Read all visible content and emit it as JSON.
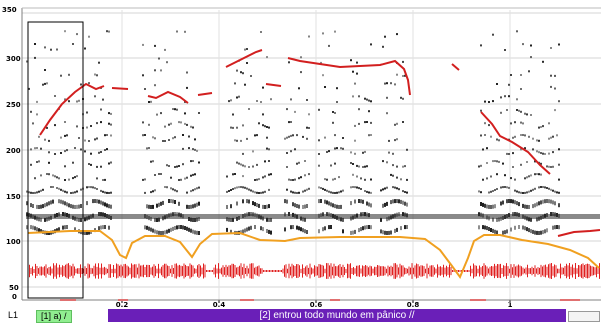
{
  "y_axis": {
    "top_label": "350",
    "ticks": [
      "300",
      "250",
      "200",
      "150",
      "100",
      "50",
      "0"
    ]
  },
  "x_axis": {
    "ticks": [
      "0.2",
      "0.4",
      "0.6",
      "0.8",
      "1"
    ]
  },
  "tiers": {
    "tier_label": "L1",
    "segment_a": "[1] a) /",
    "segment_b": "[2] entrou todo mundo em pânico //"
  },
  "colors": {
    "pitch": "#d21f1f",
    "intensity": "#f0a020",
    "waveform": "#e02020",
    "tier_accent": "#6a1fb8",
    "tier_a_bg": "#90ee90"
  }
}
